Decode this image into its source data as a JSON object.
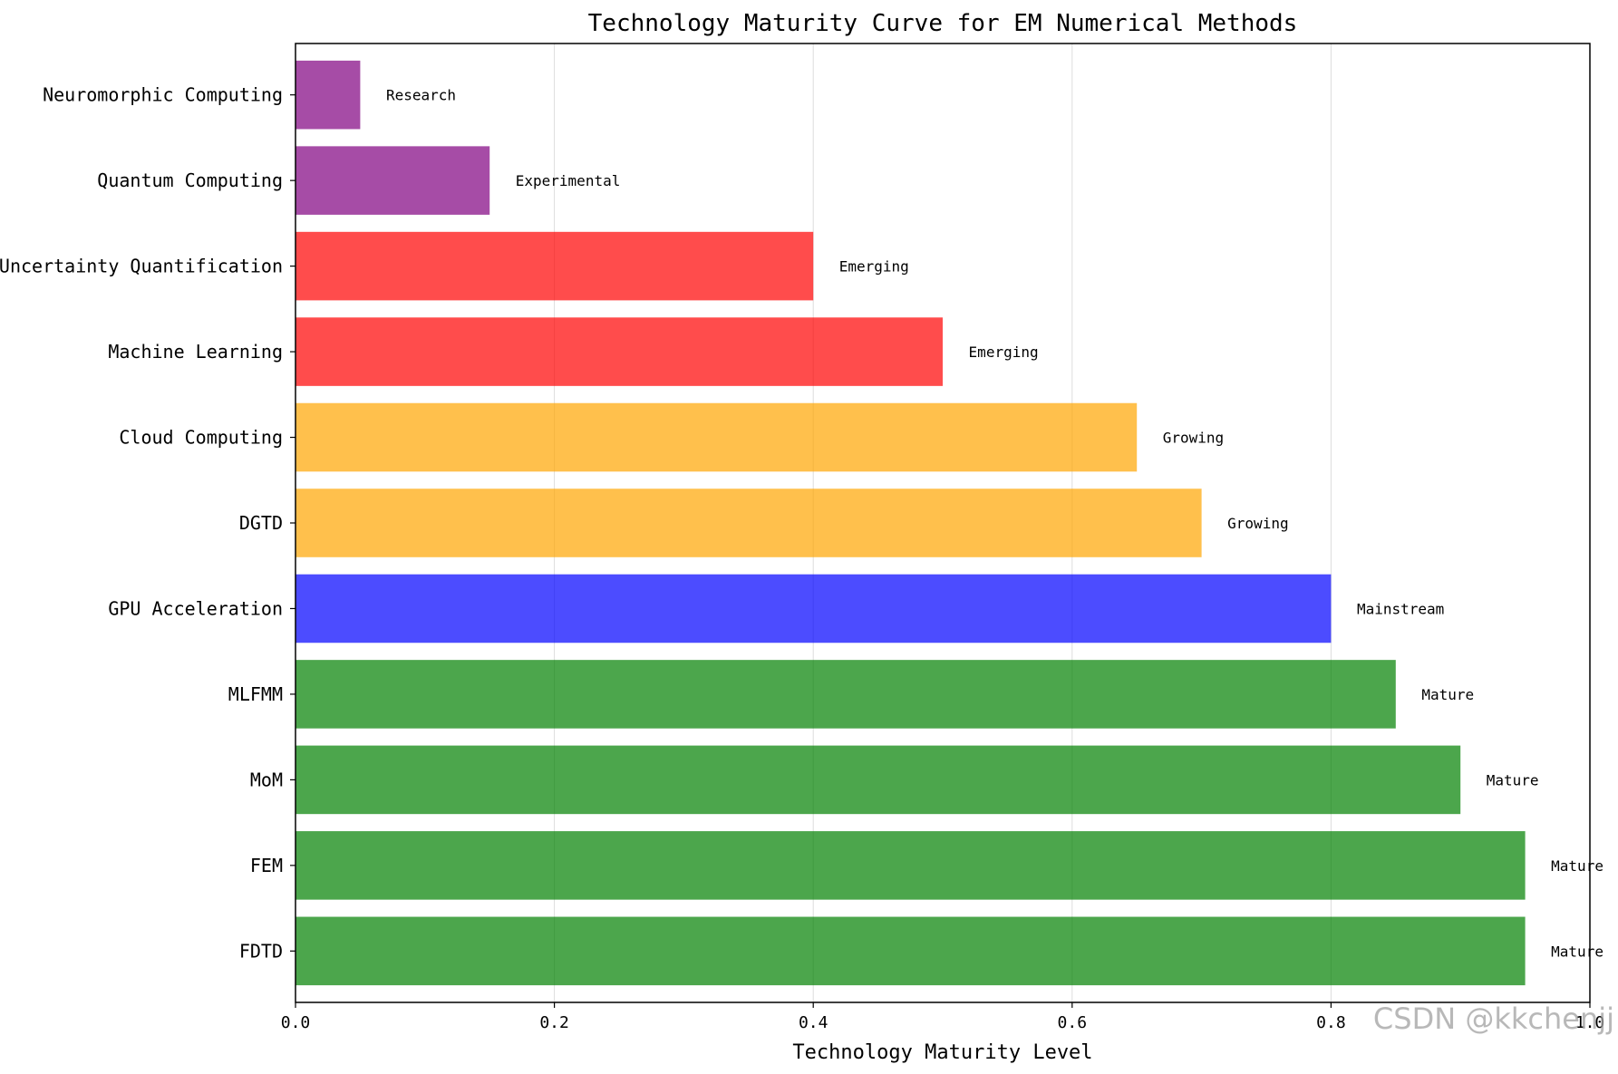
{
  "watermark": "CSDN @kkchenjj",
  "colors": {
    "Research": "#800080",
    "Experimental": "#800080",
    "Emerging": "#ff0000",
    "Growing": "#ffa500",
    "Mainstream": "#0000ff",
    "Mature": "#008000",
    "grid": "#dddddd",
    "axis": "#000000"
  },
  "chart_data": {
    "type": "bar",
    "orientation": "horizontal",
    "title": "Technology Maturity Curve for EM Numerical Methods",
    "xlabel": "Technology Maturity Level",
    "ylabel": "",
    "xlim": [
      0,
      1.0
    ],
    "xticks": [
      "0.0",
      "0.2",
      "0.4",
      "0.6",
      "0.8",
      "1.0"
    ],
    "xtick_values": [
      0,
      0.2,
      0.4,
      0.6,
      0.8,
      1.0
    ],
    "grid": "x",
    "categories": [
      "FDTD",
      "FEM",
      "MoM",
      "MLFMM",
      "GPU Acceleration",
      "DGTD",
      "Cloud Computing",
      "Machine Learning",
      "Uncertainty Quantification",
      "Quantum Computing",
      "Neuromorphic Computing"
    ],
    "values": [
      0.95,
      0.95,
      0.9,
      0.85,
      0.8,
      0.7,
      0.65,
      0.5,
      0.4,
      0.15,
      0.05
    ],
    "labels": [
      "Mature",
      "Mature",
      "Mature",
      "Mature",
      "Mainstream",
      "Growing",
      "Growing",
      "Emerging",
      "Emerging",
      "Experimental",
      "Research"
    ]
  }
}
